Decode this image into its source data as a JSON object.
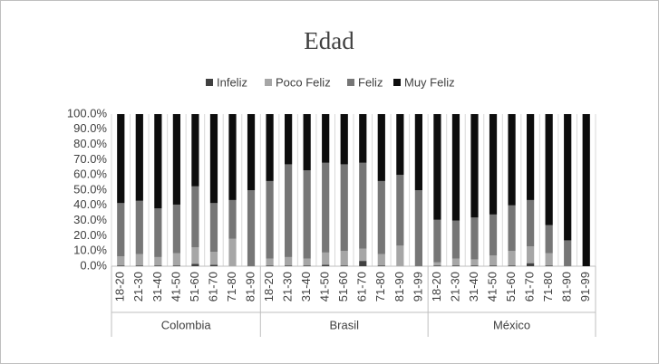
{
  "chart_data": {
    "type": "stacked_bar_100",
    "title": "Edad",
    "groups": [
      {
        "name": "Colombia",
        "categories": [
          "18-20",
          "21-30",
          "31-40",
          "41-50",
          "51-60",
          "61-70",
          "71-80",
          "81-90"
        ]
      },
      {
        "name": "Brasil",
        "categories": [
          "18-20",
          "21-30",
          "31-40",
          "41-50",
          "51-60",
          "61-70",
          "71-80",
          "81-90",
          "91-99"
        ]
      },
      {
        "name": "México",
        "categories": [
          "18-20",
          "21-30",
          "31-40",
          "41-50",
          "51-60",
          "61-70",
          "71-80",
          "81-90",
          "91-99"
        ]
      }
    ],
    "series": [
      {
        "name": "Infeliz",
        "color": "#404040",
        "values": [
          0.5,
          0.5,
          0.5,
          0.5,
          1.5,
          1,
          0,
          0,
          0.5,
          0.5,
          0.5,
          1,
          0.5,
          3.5,
          0.5,
          0,
          0,
          0.5,
          0.5,
          0.5,
          0.5,
          0.5,
          2,
          0.5,
          0,
          0
        ]
      },
      {
        "name": "Poco Feliz",
        "color": "#a6a6a6",
        "values": [
          6,
          7.5,
          5.5,
          8,
          11,
          8.5,
          18,
          0,
          4.5,
          5.5,
          4.5,
          8,
          9.5,
          8,
          7.5,
          13.5,
          0,
          2,
          4.5,
          4,
          6.5,
          9.5,
          11,
          8,
          0,
          0
        ]
      },
      {
        "name": "Feliz",
        "color": "#767676",
        "values": [
          35,
          35,
          32,
          32,
          40,
          32,
          25.5,
          50,
          51,
          61,
          58,
          59,
          57,
          56.5,
          48,
          46.5,
          50,
          28,
          25,
          27.5,
          27,
          30,
          30.5,
          18.5,
          17,
          0
        ]
      },
      {
        "name": "Muy Feliz",
        "color": "#0d0d0d",
        "values": [
          58.5,
          57,
          62,
          59.5,
          47.5,
          58.5,
          56.5,
          50,
          44,
          33,
          37,
          32,
          33,
          32,
          44,
          40,
          50,
          69.5,
          70,
          68,
          66,
          60,
          56.5,
          73,
          83,
          100
        ]
      }
    ],
    "ylim": [
      0,
      100
    ],
    "yticks": [
      {
        "value": 0,
        "label": "0.0%"
      },
      {
        "value": 10,
        "label": "10.0%"
      },
      {
        "value": 20,
        "label": "20.0%"
      },
      {
        "value": 30,
        "label": "30.0%"
      },
      {
        "value": 40,
        "label": "40.0%"
      },
      {
        "value": 50,
        "label": "50.0%"
      },
      {
        "value": 60,
        "label": "60.0%"
      },
      {
        "value": 70,
        "label": "70.0%"
      },
      {
        "value": 80,
        "label": "80.0%"
      },
      {
        "value": 90,
        "label": "90.0%"
      },
      {
        "value": 100,
        "label": "100.0%"
      }
    ],
    "grid": true,
    "legend": "top"
  }
}
